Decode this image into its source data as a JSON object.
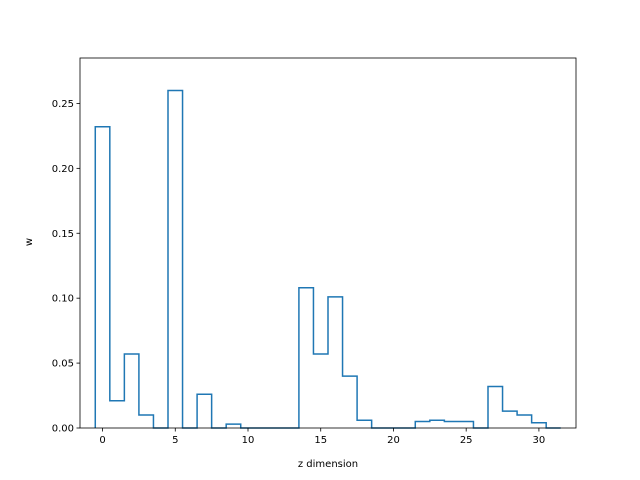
{
  "chart_data": {
    "type": "step",
    "xlabel": "z dimension",
    "ylabel": "w",
    "xlim": [
      -1.55,
      32.55
    ],
    "ylim": [
      0,
      0.285
    ],
    "x_ticks": [
      0,
      5,
      10,
      15,
      20,
      25,
      30
    ],
    "y_ticks": [
      0.0,
      0.05,
      0.1,
      0.15,
      0.2,
      0.25
    ],
    "x_tick_labels": [
      "0",
      "5",
      "10",
      "15",
      "20",
      "25",
      "30"
    ],
    "y_tick_labels": [
      "0.00",
      "0.05",
      "0.10",
      "0.15",
      "0.20",
      "0.25"
    ],
    "series_color": "#1f77b4",
    "x": [
      0,
      1,
      2,
      3,
      4,
      5,
      6,
      7,
      8,
      9,
      10,
      11,
      12,
      13,
      14,
      15,
      16,
      17,
      18,
      19,
      20,
      21,
      22,
      23,
      24,
      25,
      26,
      27,
      28,
      29,
      30,
      31
    ],
    "values": [
      0.232,
      0.021,
      0.057,
      0.01,
      0.0,
      0.26,
      0.0,
      0.026,
      0.0,
      0.003,
      0.0,
      0.0,
      0.0,
      0.0,
      0.108,
      0.057,
      0.101,
      0.04,
      0.006,
      0.0,
      0.0,
      0.0,
      0.005,
      0.006,
      0.005,
      0.005,
      0.0,
      0.032,
      0.013,
      0.01,
      0.004,
      0.0
    ]
  }
}
